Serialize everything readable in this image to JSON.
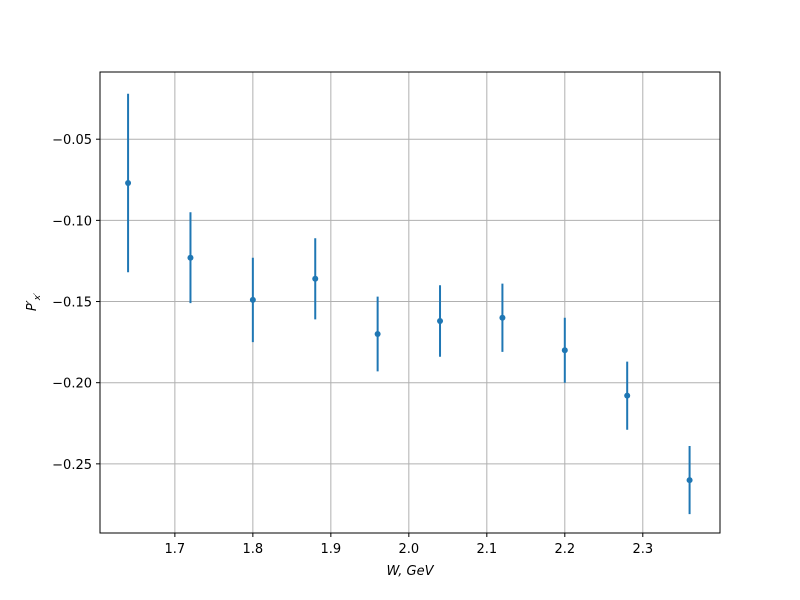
{
  "chart_data": {
    "type": "errorbar",
    "xlabel": "W, GeV",
    "ylabel": {
      "base": "P′",
      "sub": "x′"
    },
    "x": [
      1.64,
      1.72,
      1.8,
      1.88,
      1.96,
      2.04,
      2.12,
      2.2,
      2.28,
      2.36
    ],
    "series": [
      {
        "color": "#1f77b4",
        "values": [
          -0.077,
          -0.123,
          -0.149,
          -0.136,
          -0.17,
          -0.162,
          -0.16,
          -0.18,
          -0.208,
          -0.26
        ],
        "errors": [
          0.055,
          0.028,
          0.026,
          0.025,
          0.023,
          0.022,
          0.021,
          0.02,
          0.021,
          0.021
        ]
      }
    ],
    "xlim": [
      1.604,
      2.399
    ],
    "ylim": [
      -0.2926,
      -0.0086
    ],
    "xticks": [
      1.7,
      1.8,
      1.9,
      {
        "value": 2.0,
        "label": "2.0"
      },
      2.1,
      2.2,
      2.3
    ],
    "yticks": [
      {
        "value": -0.05,
        "label": "−0.05"
      },
      {
        "value": -0.1,
        "label": "−0.10"
      },
      {
        "value": -0.15,
        "label": "−0.15"
      },
      {
        "value": -0.2,
        "label": "−0.20"
      },
      {
        "value": -0.25,
        "label": "−0.25"
      }
    ],
    "grid": true
  }
}
